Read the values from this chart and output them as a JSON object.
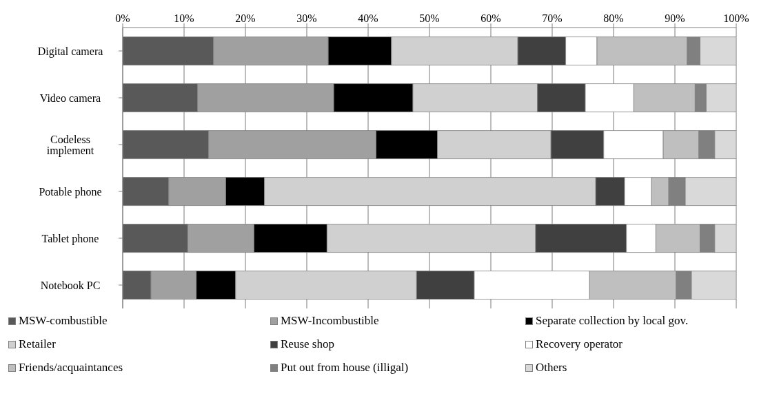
{
  "chart_data": {
    "type": "bar",
    "orientation": "horizontal",
    "stacked": true,
    "categories": [
      "Digital camera",
      "Video camera",
      "Codeless implement",
      "Potable phone",
      "Tablet phone",
      "Notebook PC"
    ],
    "series": [
      {
        "name": "MSW-combustible",
        "color": "#595959",
        "values": [
          14.8,
          12.2,
          14.0,
          7.5,
          10.6,
          4.6
        ]
      },
      {
        "name": "MSW-Incombustible",
        "color": "#a0a0a0",
        "values": [
          18.7,
          22.2,
          27.3,
          9.3,
          10.8,
          7.4
        ]
      },
      {
        "name": "Separate collection by local gov.",
        "color": "#000000",
        "values": [
          10.3,
          12.9,
          10.0,
          6.3,
          11.9,
          6.4
        ]
      },
      {
        "name": "Retailer",
        "color": "#d0d0d0",
        "values": [
          20.6,
          20.3,
          18.5,
          54.0,
          34.0,
          29.5
        ]
      },
      {
        "name": "Reuse shop",
        "color": "#404040",
        "values": [
          7.8,
          7.8,
          8.6,
          4.7,
          14.8,
          9.4
        ]
      },
      {
        "name": "Recovery operator",
        "color": "#ffffff",
        "values": [
          5.1,
          7.9,
          9.7,
          4.4,
          4.8,
          18.8
        ]
      },
      {
        "name": "Friends/acquaintances",
        "color": "#bfbfbf",
        "values": [
          14.7,
          10.0,
          5.8,
          2.8,
          7.2,
          14.1
        ]
      },
      {
        "name": "Put out from house (illigal)",
        "color": "#808080",
        "values": [
          2.1,
          1.8,
          2.6,
          2.7,
          2.4,
          2.5
        ]
      },
      {
        "name": "Others",
        "color": "#d9d9d9",
        "values": [
          5.9,
          4.9,
          3.5,
          8.3,
          3.5,
          7.3
        ]
      }
    ],
    "xlim": [
      0,
      100
    ],
    "xticks": [
      {
        "value": 0,
        "label": "0%"
      },
      {
        "value": 10,
        "label": "10%"
      },
      {
        "value": 20,
        "label": "20%"
      },
      {
        "value": 30,
        "label": "30%"
      },
      {
        "value": 40,
        "label": "40%"
      },
      {
        "value": 50,
        "label": "50%"
      },
      {
        "value": 60,
        "label": "60%"
      },
      {
        "value": 70,
        "label": "70%"
      },
      {
        "value": 80,
        "label": "80%"
      },
      {
        "value": 90,
        "label": "90%"
      },
      {
        "value": 100,
        "label": "100%"
      }
    ],
    "grid": "x",
    "legend": "bottom"
  }
}
